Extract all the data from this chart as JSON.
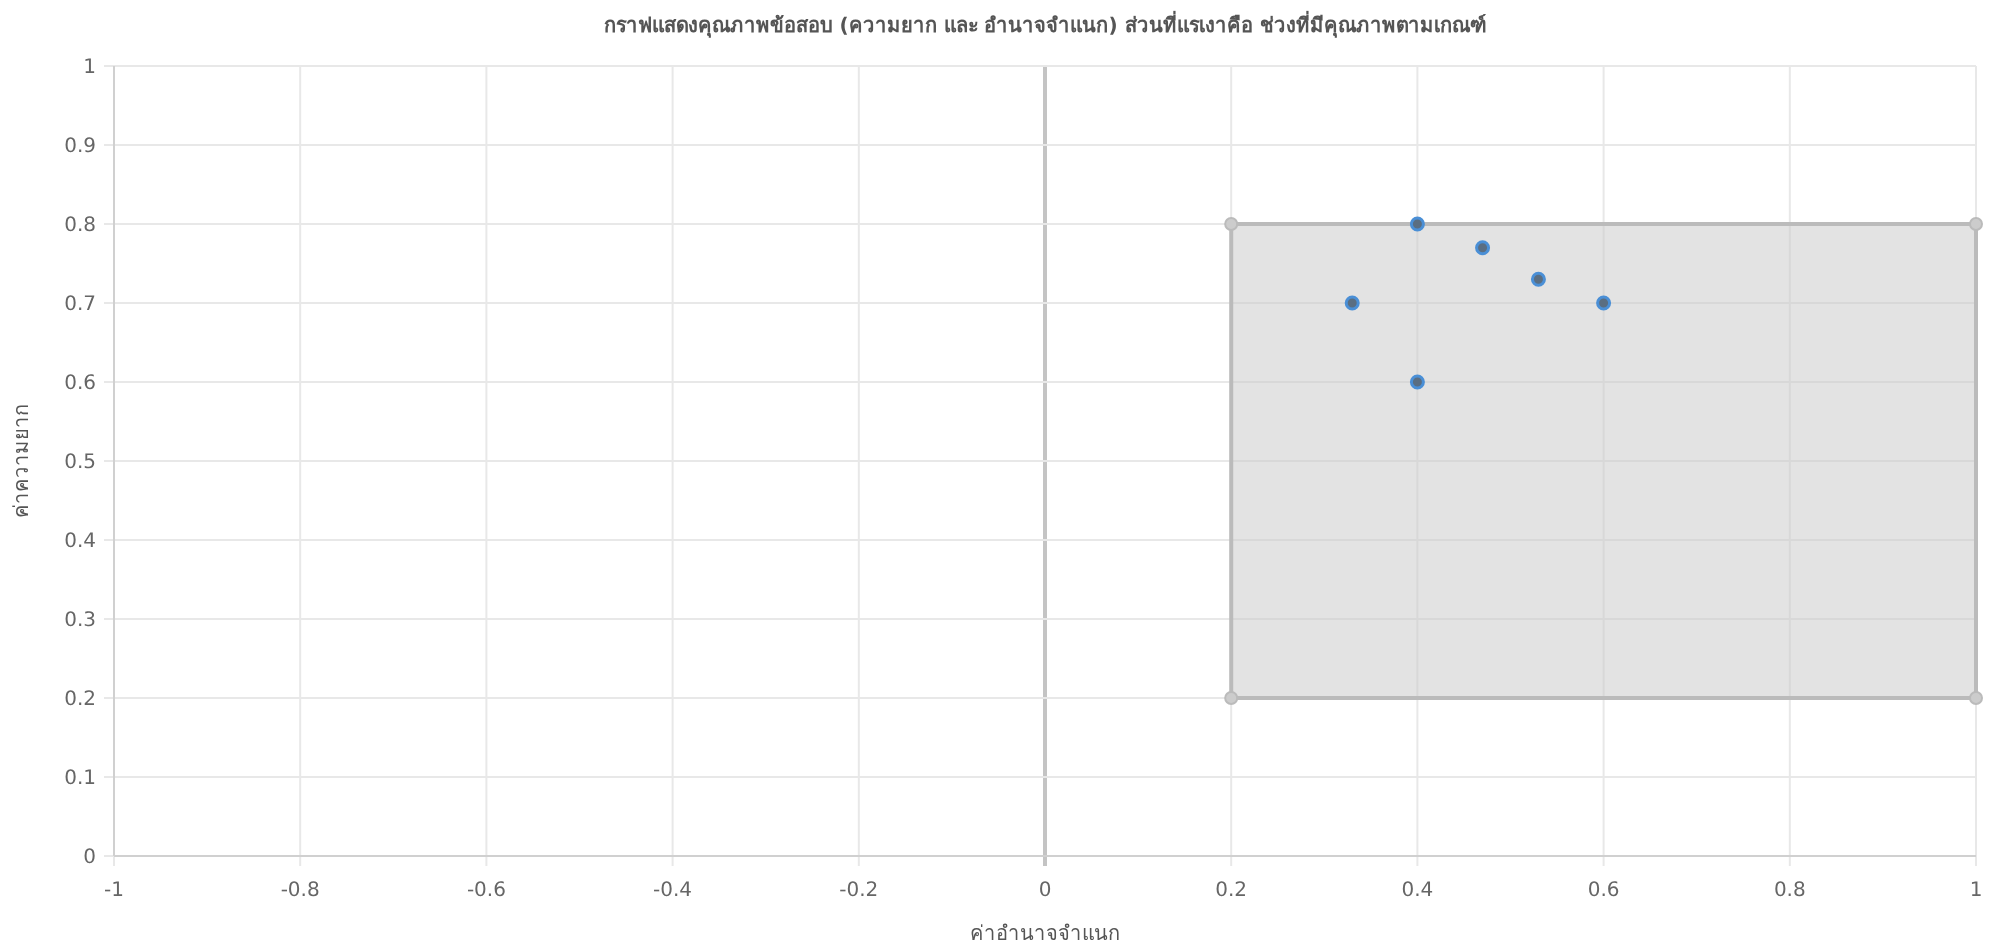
{
  "chart_data": {
    "type": "scatter",
    "title": "กราฟแสดงคุณภาพข้อสอบ (ความยาก และ อำนาจจำแนก) ส่วนที่แรเงาคือ ช่วงที่มีคุณภาพตามเกณฑ์",
    "xlabel": "ค่าอำนาจจำแนก",
    "ylabel": "ค่าความยาก",
    "series": [
      {
        "type": "area",
        "color": "#c8c8c8",
        "x": [
          0.2,
          1.0,
          1.0,
          0.2
        ],
        "values": [
          0.8,
          0.8,
          0.2,
          0.2
        ]
      },
      {
        "color": "#4a8fd6",
        "x": [
          0.33,
          0.4,
          0.47,
          0.53,
          0.6,
          0.4
        ],
        "values": [
          0.7,
          0.8,
          0.77,
          0.73,
          0.7,
          0.6
        ]
      }
    ],
    "xlim": [
      -1,
      1
    ],
    "xticks": [
      -1.0,
      -0.8,
      -0.6,
      -0.4,
      -0.2,
      0,
      0.2,
      0.4,
      0.6,
      0.8,
      1.0
    ],
    "ylim": [
      0,
      1
    ],
    "yticks": [
      0,
      0.1,
      0.2,
      0.3,
      0.4,
      0.5,
      0.6,
      0.7,
      0.8,
      0.9,
      1.0
    ],
    "grid": true,
    "marker": "circle"
  }
}
